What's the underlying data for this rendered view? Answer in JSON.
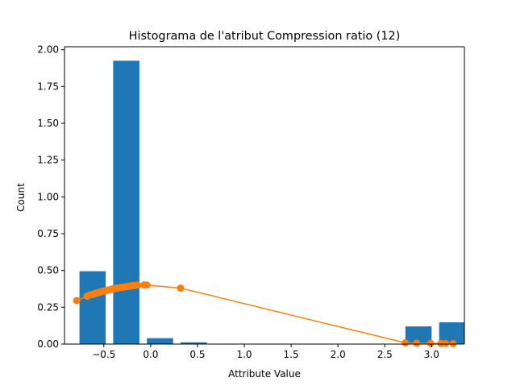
{
  "chart_data": {
    "type": "bar",
    "title": "Histograma de l'atribut Compression ratio (12)",
    "xlabel": "Attribute Value",
    "ylabel": "Count",
    "xlim": [
      -0.92,
      3.35
    ],
    "ylim": [
      0.0,
      2.02
    ],
    "grid": false,
    "legend": "none",
    "x_ticks": [
      {
        "value": -0.5,
        "label": "−0.5"
      },
      {
        "value": 0.0,
        "label": "0.0"
      },
      {
        "value": 0.5,
        "label": "0.5"
      },
      {
        "value": 1.0,
        "label": "1.0"
      },
      {
        "value": 1.5,
        "label": "1.5"
      },
      {
        "value": 2.0,
        "label": "2.0"
      },
      {
        "value": 2.5,
        "label": "2.5"
      },
      {
        "value": 3.0,
        "label": "3.0"
      }
    ],
    "y_ticks": [
      {
        "value": 0.0,
        "label": "0.00"
      },
      {
        "value": 0.25,
        "label": "0.25"
      },
      {
        "value": 0.5,
        "label": "0.50"
      },
      {
        "value": 0.75,
        "label": "0.75"
      },
      {
        "value": 1.0,
        "label": "1.00"
      },
      {
        "value": 1.25,
        "label": "1.25"
      },
      {
        "value": 1.5,
        "label": "1.50"
      },
      {
        "value": 1.75,
        "label": "1.75"
      },
      {
        "value": 2.0,
        "label": "2.00"
      }
    ],
    "bars": {
      "color": "#1f77b4",
      "x_left": [
        -0.76,
        -0.4,
        -0.04,
        0.32,
        2.72,
        3.08
      ],
      "x_right": [
        -0.48,
        -0.12,
        0.24,
        0.6,
        3.0,
        3.36
      ],
      "values": [
        0.495,
        1.925,
        0.04,
        0.012,
        0.12,
        0.148
      ]
    },
    "density_line": {
      "color": "#ff7f0e",
      "marker": "circle",
      "x": [
        -0.79,
        -0.68,
        -0.65,
        -0.62,
        -0.6,
        -0.58,
        -0.56,
        -0.54,
        -0.52,
        -0.5,
        -0.48,
        -0.46,
        -0.44,
        -0.42,
        -0.4,
        -0.38,
        -0.36,
        -0.34,
        -0.32,
        -0.3,
        -0.28,
        -0.26,
        -0.24,
        -0.22,
        -0.2,
        -0.18,
        -0.16,
        -0.14,
        -0.07,
        -0.04,
        0.32,
        2.72,
        2.84,
        2.99,
        3.1,
        3.15,
        3.23
      ],
      "y": [
        0.295,
        0.325,
        0.333,
        0.338,
        0.342,
        0.346,
        0.35,
        0.354,
        0.357,
        0.36,
        0.363,
        0.366,
        0.369,
        0.372,
        0.375,
        0.378,
        0.38,
        0.382,
        0.384,
        0.386,
        0.388,
        0.39,
        0.392,
        0.394,
        0.396,
        0.398,
        0.399,
        0.4,
        0.402,
        0.401,
        0.38,
        0.008,
        0.006,
        0.005,
        0.004,
        0.004,
        0.003
      ]
    }
  }
}
